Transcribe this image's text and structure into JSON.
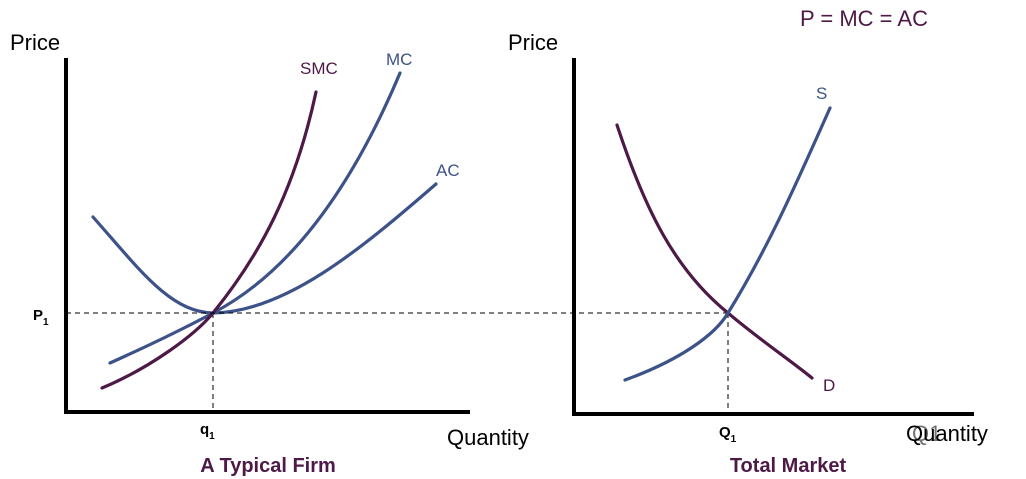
{
  "formula": "P = MC = AC",
  "colors": {
    "blue": "#3d5289",
    "purple": "#4d1946",
    "black": "#000000"
  },
  "firm": {
    "title": "A Typical Firm",
    "y_axis_label": "Price",
    "x_axis_label": "Quantity",
    "price_tick": {
      "main": "P",
      "sub": "1"
    },
    "quantity_tick": {
      "main": "q",
      "sub": "1"
    },
    "curves": {
      "smc": "SMC",
      "mc": "MC",
      "ac": "AC"
    }
  },
  "market": {
    "title": "Total Market",
    "y_axis_label": "Price",
    "x_axis_label": "Quantity",
    "quantity_tick": {
      "main": "Q",
      "sub": "1"
    },
    "overlap_glyph": "Q1",
    "curves": {
      "supply": "S",
      "demand": "D"
    }
  }
}
